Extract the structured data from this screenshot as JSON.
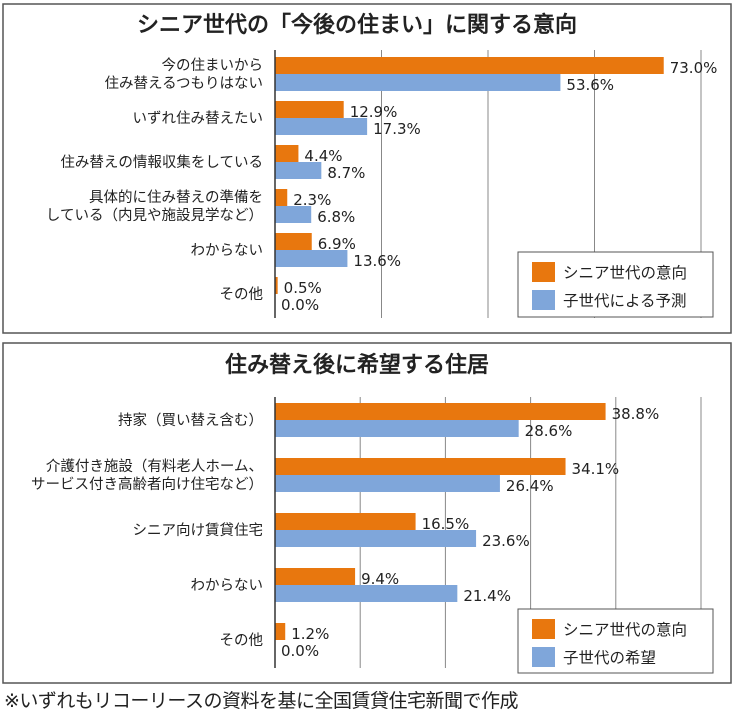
{
  "colors": {
    "senior": "#e8770e",
    "child": "#7fa6da",
    "grid": "#888888",
    "border": "#555555"
  },
  "chart_data": [
    {
      "type": "bar",
      "orientation": "horizontal",
      "title": "シニア世代の「今後の住まい」に関する意向",
      "categories": [
        [
          "今の住まいから",
          "住み替えるつもりはない"
        ],
        [
          "いずれ住み替えたい"
        ],
        [
          "住み替えの情報収集をしている"
        ],
        [
          "具体的に住み替えの準備を",
          "している（内見や施設見学など）"
        ],
        [
          "わからない"
        ],
        [
          "その他"
        ]
      ],
      "series": [
        {
          "name": "シニア世代の意向",
          "values": [
            73.0,
            12.9,
            4.4,
            2.3,
            6.9,
            0.5
          ],
          "labels": [
            "73.0%",
            "12.9%",
            "4.4%",
            "2.3%",
            "6.9%",
            "0.5%"
          ]
        },
        {
          "name": "子世代による予測",
          "values": [
            53.6,
            17.3,
            8.7,
            6.8,
            13.6,
            0.0
          ],
          "labels": [
            "53.6%",
            "17.3%",
            "8.7%",
            "6.8%",
            "13.6%",
            "0.0%"
          ]
        }
      ],
      "xlim": [
        0,
        80
      ],
      "grid_step": 20,
      "grid": true,
      "legend": "bottom-right"
    },
    {
      "type": "bar",
      "orientation": "horizontal",
      "title": "住み替え後に希望する住居",
      "categories": [
        [
          "持家（買い替え含む）"
        ],
        [
          "介護付き施設（有料老人ホーム、",
          "サービス付き高齢者向け住宅など）"
        ],
        [
          "シニア向け賃貸住宅"
        ],
        [
          "わからない"
        ],
        [
          "その他"
        ]
      ],
      "series": [
        {
          "name": "シニア世代の意向",
          "values": [
            38.8,
            34.1,
            16.5,
            9.4,
            1.2
          ],
          "labels": [
            "38.8%",
            "34.1%",
            "16.5%",
            "9.4%",
            "1.2%"
          ]
        },
        {
          "name": "子世代の希望",
          "values": [
            28.6,
            26.4,
            23.6,
            21.4,
            0.0
          ],
          "labels": [
            "28.6%",
            "26.4%",
            "23.6%",
            "21.4%",
            "0.0%"
          ]
        }
      ],
      "xlim": [
        0,
        50
      ],
      "grid_step": 10,
      "grid": true,
      "legend": "bottom-right"
    }
  ],
  "footnote": "※いずれもリコーリースの資料を基に全国賃貸住宅新聞で作成"
}
